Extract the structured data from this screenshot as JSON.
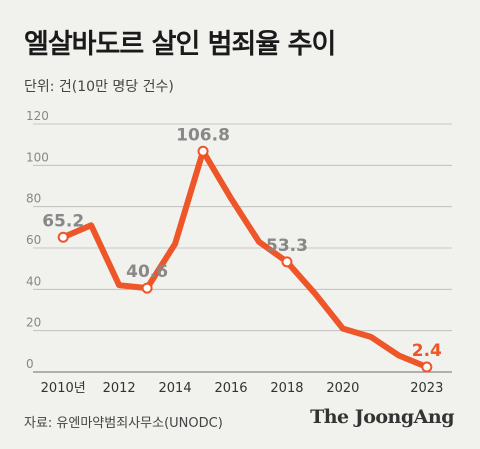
{
  "title": "엘살바도르 살인 범죄율 추이",
  "unit": "단위: 건(10만 명당 건수)",
  "source": "자료: 유엔마약범죄사무소(UNODC)",
  "brand": "The JoongAng",
  "colors": {
    "line": "#ee5528",
    "grid": "#b8b8b8",
    "background": "#f1f1ed"
  },
  "chart_data": {
    "type": "line",
    "x": [
      2010,
      2011,
      2012,
      2013,
      2014,
      2015,
      2016,
      2017,
      2018,
      2019,
      2020,
      2021,
      2022,
      2023
    ],
    "series": [
      {
        "values": [
          65.2,
          71,
          42,
          40.6,
          62,
          106.8,
          84,
          63,
          53.3,
          38,
          21,
          17,
          8,
          2.4
        ]
      }
    ],
    "ylim": [
      0,
      120
    ],
    "yticks": [
      "0",
      "20",
      "40",
      "60",
      "80",
      "100",
      "120"
    ],
    "xticks": [
      {
        "x": 2010,
        "label": "2010년"
      },
      {
        "x": 2012,
        "label": "2012"
      },
      {
        "x": 2014,
        "label": "2014"
      },
      {
        "x": 2016,
        "label": "2016"
      },
      {
        "x": 2018,
        "label": "2018"
      },
      {
        "x": 2020,
        "label": "2020"
      },
      {
        "x": 2023,
        "label": "2023"
      }
    ],
    "data_labels": [
      {
        "x": 2010,
        "text": "65.2"
      },
      {
        "x": 2013,
        "text": "40.6"
      },
      {
        "x": 2015,
        "text": "106.8"
      },
      {
        "x": 2018,
        "text": "53.3"
      },
      {
        "x": 2023,
        "text": "2.4",
        "highlight": true
      }
    ],
    "grid": true
  }
}
